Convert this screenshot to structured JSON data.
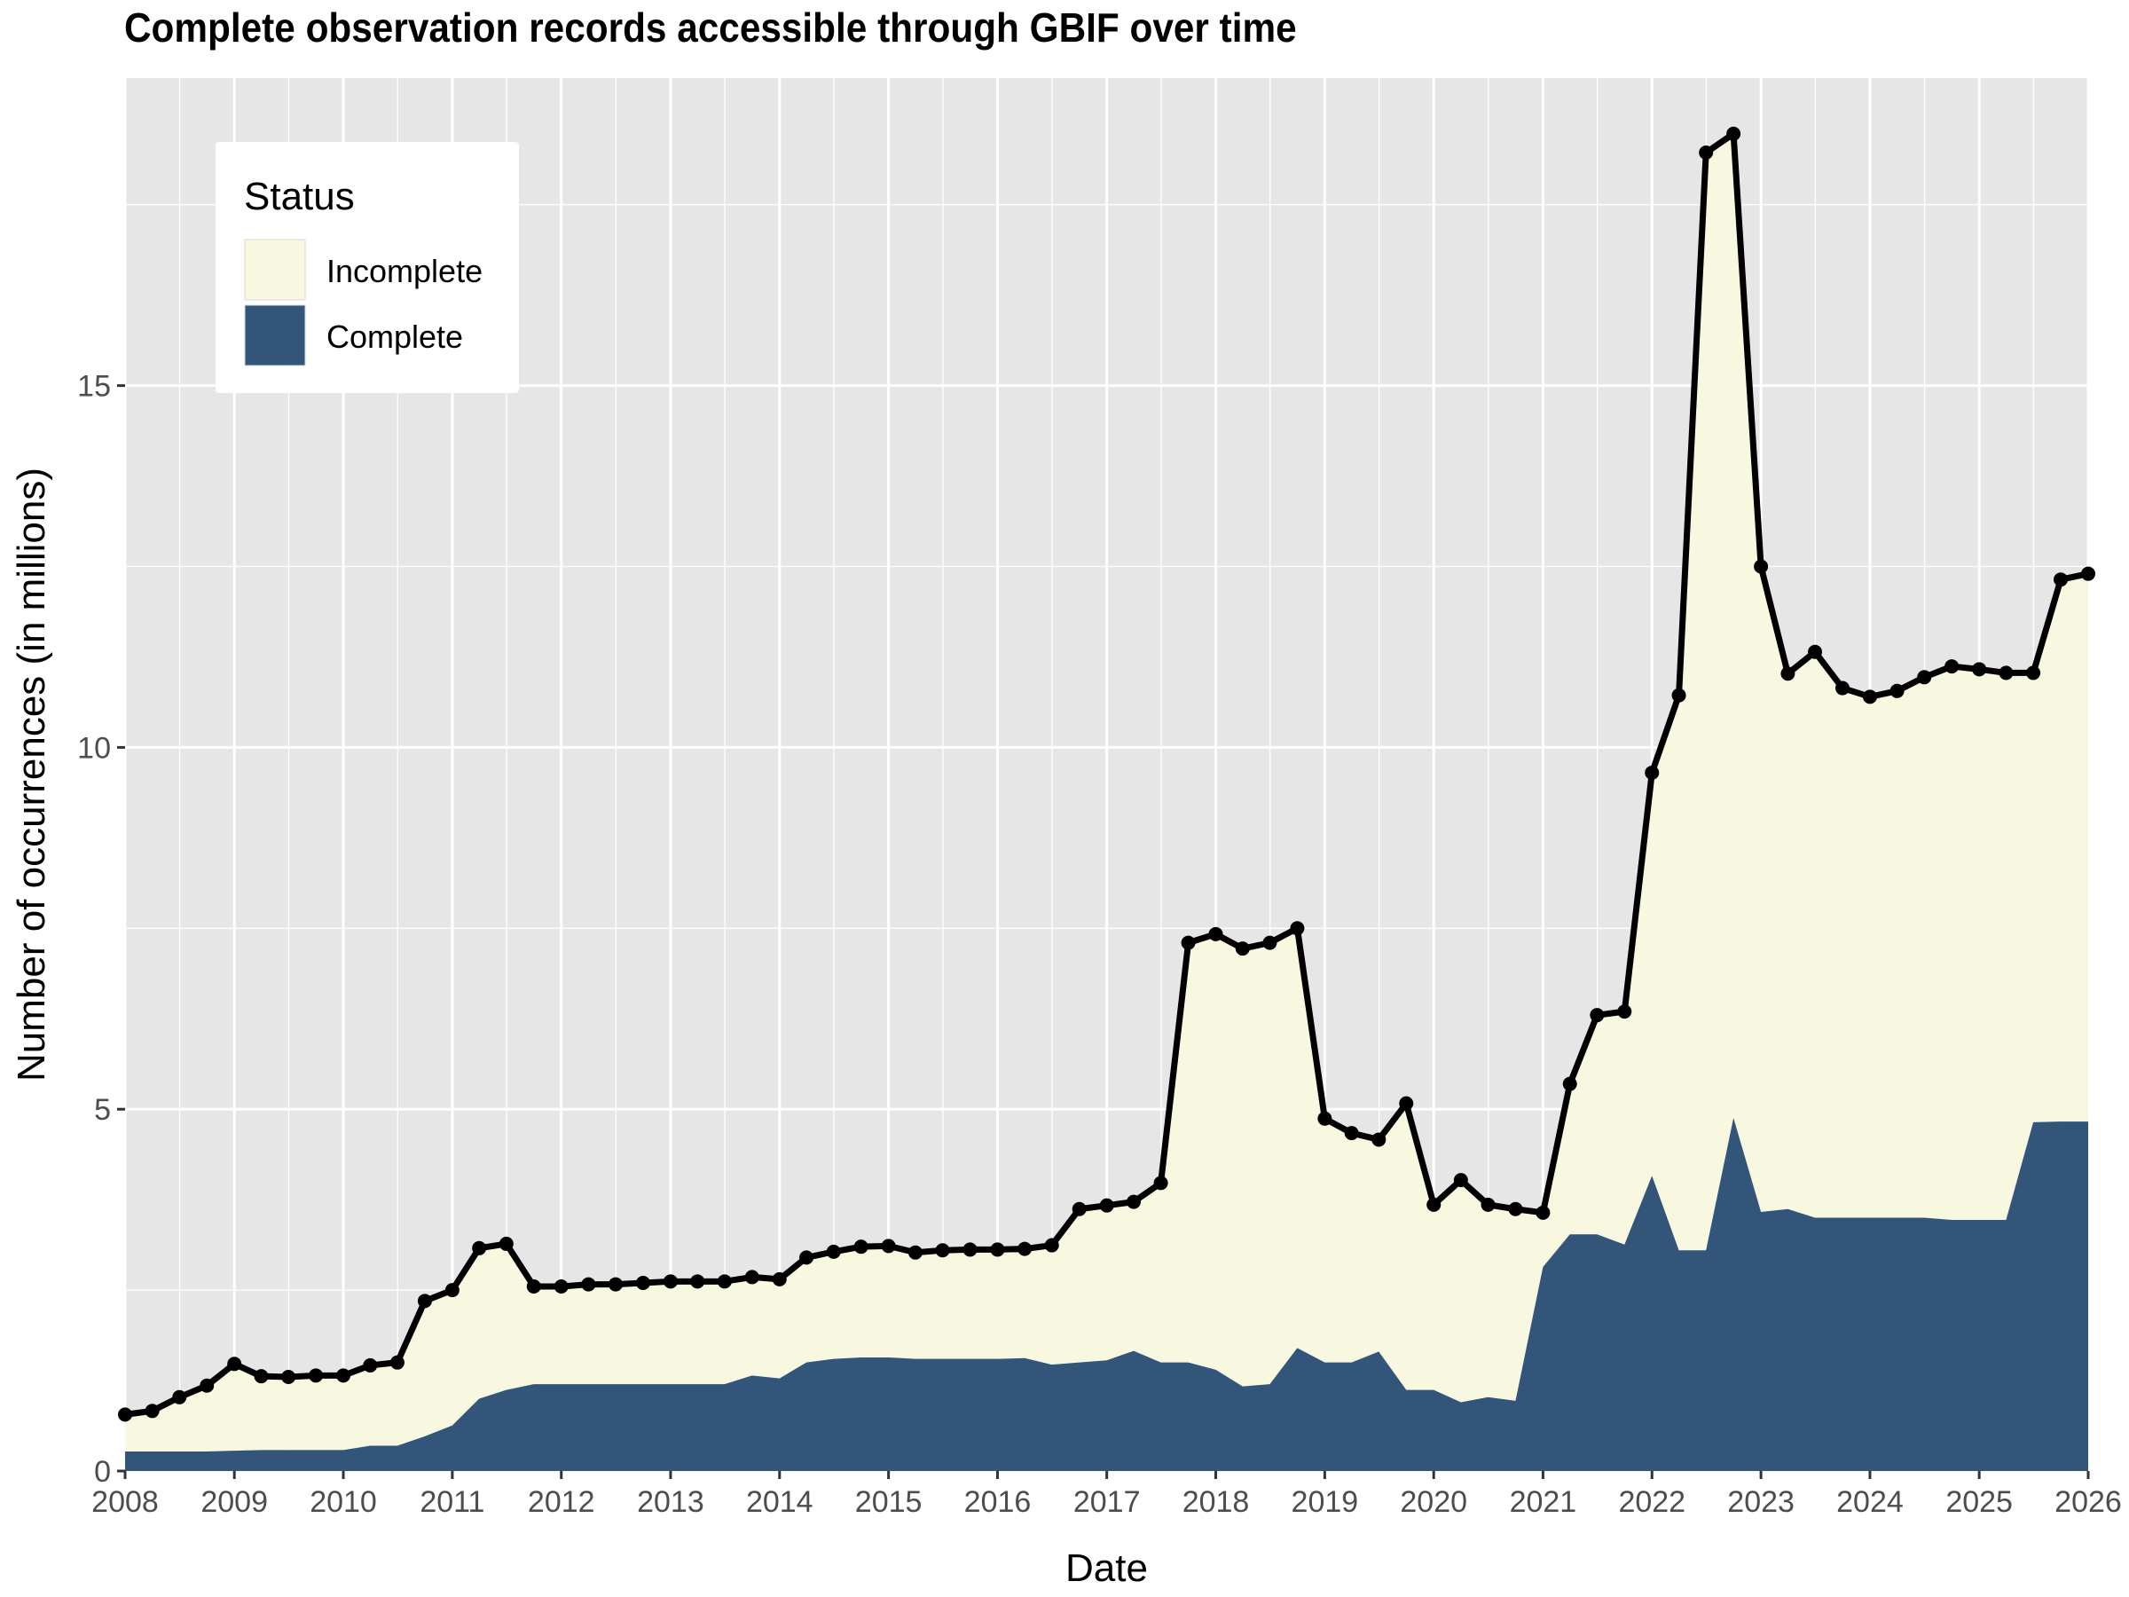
{
  "chart_data": {
    "type": "area",
    "title": "Complete observation records accessible through GBIF over time",
    "xlabel": "Date",
    "ylabel": "Number of occurrences (in millions)",
    "xlim": [
      "2008-01-01",
      "2026-01-01"
    ],
    "ylim": [
      0,
      19.25
    ],
    "x_ticks": [
      "2008",
      "2009",
      "2010",
      "2011",
      "2012",
      "2013",
      "2014",
      "2015",
      "2016",
      "2017",
      "2018",
      "2019",
      "2020",
      "2021",
      "2022",
      "2023",
      "2024",
      "2025",
      "2026"
    ],
    "y_ticks": [
      0,
      5,
      10,
      15
    ],
    "grid": true,
    "legend": {
      "title": "Status",
      "position": "top-left",
      "entries": [
        {
          "name": "Incomplete",
          "color": "#F8F8E1"
        },
        {
          "name": "Complete",
          "color": "#33557A"
        }
      ]
    },
    "colors": {
      "incomplete": "#F8F8E1",
      "complete": "#33557A",
      "total_line": "#000000",
      "panel": "#E6E6E6",
      "grid": "#FFFFFF"
    },
    "x": [
      "2008-01-01",
      "2008-04-01",
      "2008-07-01",
      "2008-10-01",
      "2009-01-01",
      "2009-04-01",
      "2009-07-01",
      "2009-10-01",
      "2010-01-01",
      "2010-04-01",
      "2010-07-01",
      "2010-10-01",
      "2011-01-01",
      "2011-04-01",
      "2011-07-01",
      "2011-10-01",
      "2012-01-01",
      "2012-04-01",
      "2012-07-01",
      "2012-10-01",
      "2013-01-01",
      "2013-04-01",
      "2013-07-01",
      "2013-10-01",
      "2014-01-01",
      "2014-04-01",
      "2014-07-01",
      "2014-10-01",
      "2015-01-01",
      "2015-04-01",
      "2015-07-01",
      "2015-10-01",
      "2016-01-01",
      "2016-04-01",
      "2016-07-01",
      "2016-10-01",
      "2017-01-01",
      "2017-04-01",
      "2017-07-01",
      "2017-10-01",
      "2018-01-01",
      "2018-04-01",
      "2018-07-01",
      "2018-10-01",
      "2019-01-01",
      "2019-04-01",
      "2019-07-01",
      "2019-10-01",
      "2020-01-01",
      "2020-04-01",
      "2020-07-01",
      "2020-10-01",
      "2021-01-01",
      "2021-04-01",
      "2021-07-01",
      "2021-10-01",
      "2022-01-01",
      "2022-04-01",
      "2022-07-01",
      "2022-10-01",
      "2023-01-01",
      "2023-04-01",
      "2023-07-01",
      "2023-10-01",
      "2024-01-01",
      "2024-04-01",
      "2024-07-01",
      "2024-10-01",
      "2025-01-01",
      "2025-04-01",
      "2025-07-01",
      "2025-10-01",
      "2026-01-01"
    ],
    "series": [
      {
        "name": "Total",
        "values": [
          0.78,
          0.83,
          1.02,
          1.18,
          1.48,
          1.31,
          1.3,
          1.32,
          1.32,
          1.46,
          1.5,
          2.35,
          2.5,
          3.08,
          3.14,
          2.55,
          2.55,
          2.58,
          2.58,
          2.6,
          2.62,
          2.62,
          2.62,
          2.68,
          2.65,
          2.95,
          3.03,
          3.1,
          3.11,
          3.02,
          3.05,
          3.06,
          3.06,
          3.07,
          3.12,
          3.62,
          3.67,
          3.72,
          3.98,
          7.3,
          7.42,
          7.22,
          7.3,
          7.5,
          4.87,
          4.67,
          4.58,
          5.08,
          3.68,
          4.02,
          3.68,
          3.62,
          3.57,
          5.35,
          6.3,
          6.35,
          9.65,
          10.72,
          18.22,
          18.48,
          12.5,
          11.02,
          11.32,
          10.82,
          10.7,
          10.78,
          10.97,
          11.12,
          11.08,
          11.03,
          11.03,
          12.32,
          12.4
        ]
      },
      {
        "name": "Complete",
        "values": [
          0.27,
          0.27,
          0.27,
          0.27,
          0.28,
          0.29,
          0.29,
          0.29,
          0.29,
          0.35,
          0.35,
          0.48,
          0.63,
          1.0,
          1.12,
          1.2,
          1.2,
          1.2,
          1.2,
          1.2,
          1.2,
          1.2,
          1.2,
          1.32,
          1.28,
          1.5,
          1.55,
          1.57,
          1.57,
          1.55,
          1.55,
          1.55,
          1.55,
          1.56,
          1.47,
          1.5,
          1.53,
          1.66,
          1.5,
          1.5,
          1.4,
          1.17,
          1.2,
          1.7,
          1.5,
          1.5,
          1.65,
          1.12,
          1.12,
          0.95,
          1.02,
          0.97,
          2.82,
          3.27,
          3.27,
          3.13,
          4.08,
          3.05,
          3.05,
          4.88,
          3.58,
          3.62,
          3.5,
          3.5,
          3.5,
          3.5,
          3.5,
          3.47,
          3.47,
          3.47,
          4.82,
          4.83,
          4.83
        ]
      }
    ]
  }
}
